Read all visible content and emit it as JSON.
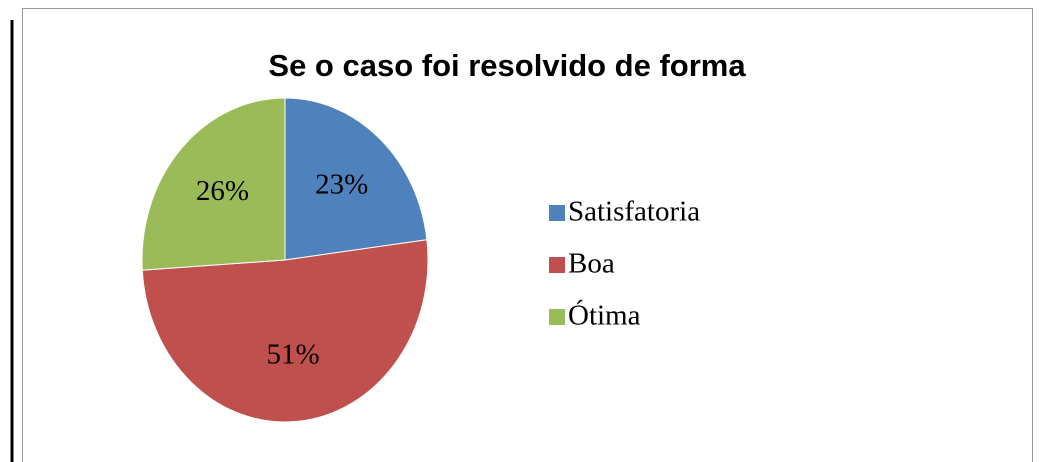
{
  "chart_data": {
    "type": "pie",
    "title": "Se o caso foi resolvido de forma",
    "categories": [
      "Satisfatoria",
      "Boa",
      "Ótima"
    ],
    "values": [
      23,
      51,
      26
    ],
    "value_labels": [
      "23%",
      "51%",
      "26%"
    ],
    "colors": [
      "#4f81bd",
      "#c0504d",
      "#9bbb59"
    ],
    "legend": "right"
  }
}
